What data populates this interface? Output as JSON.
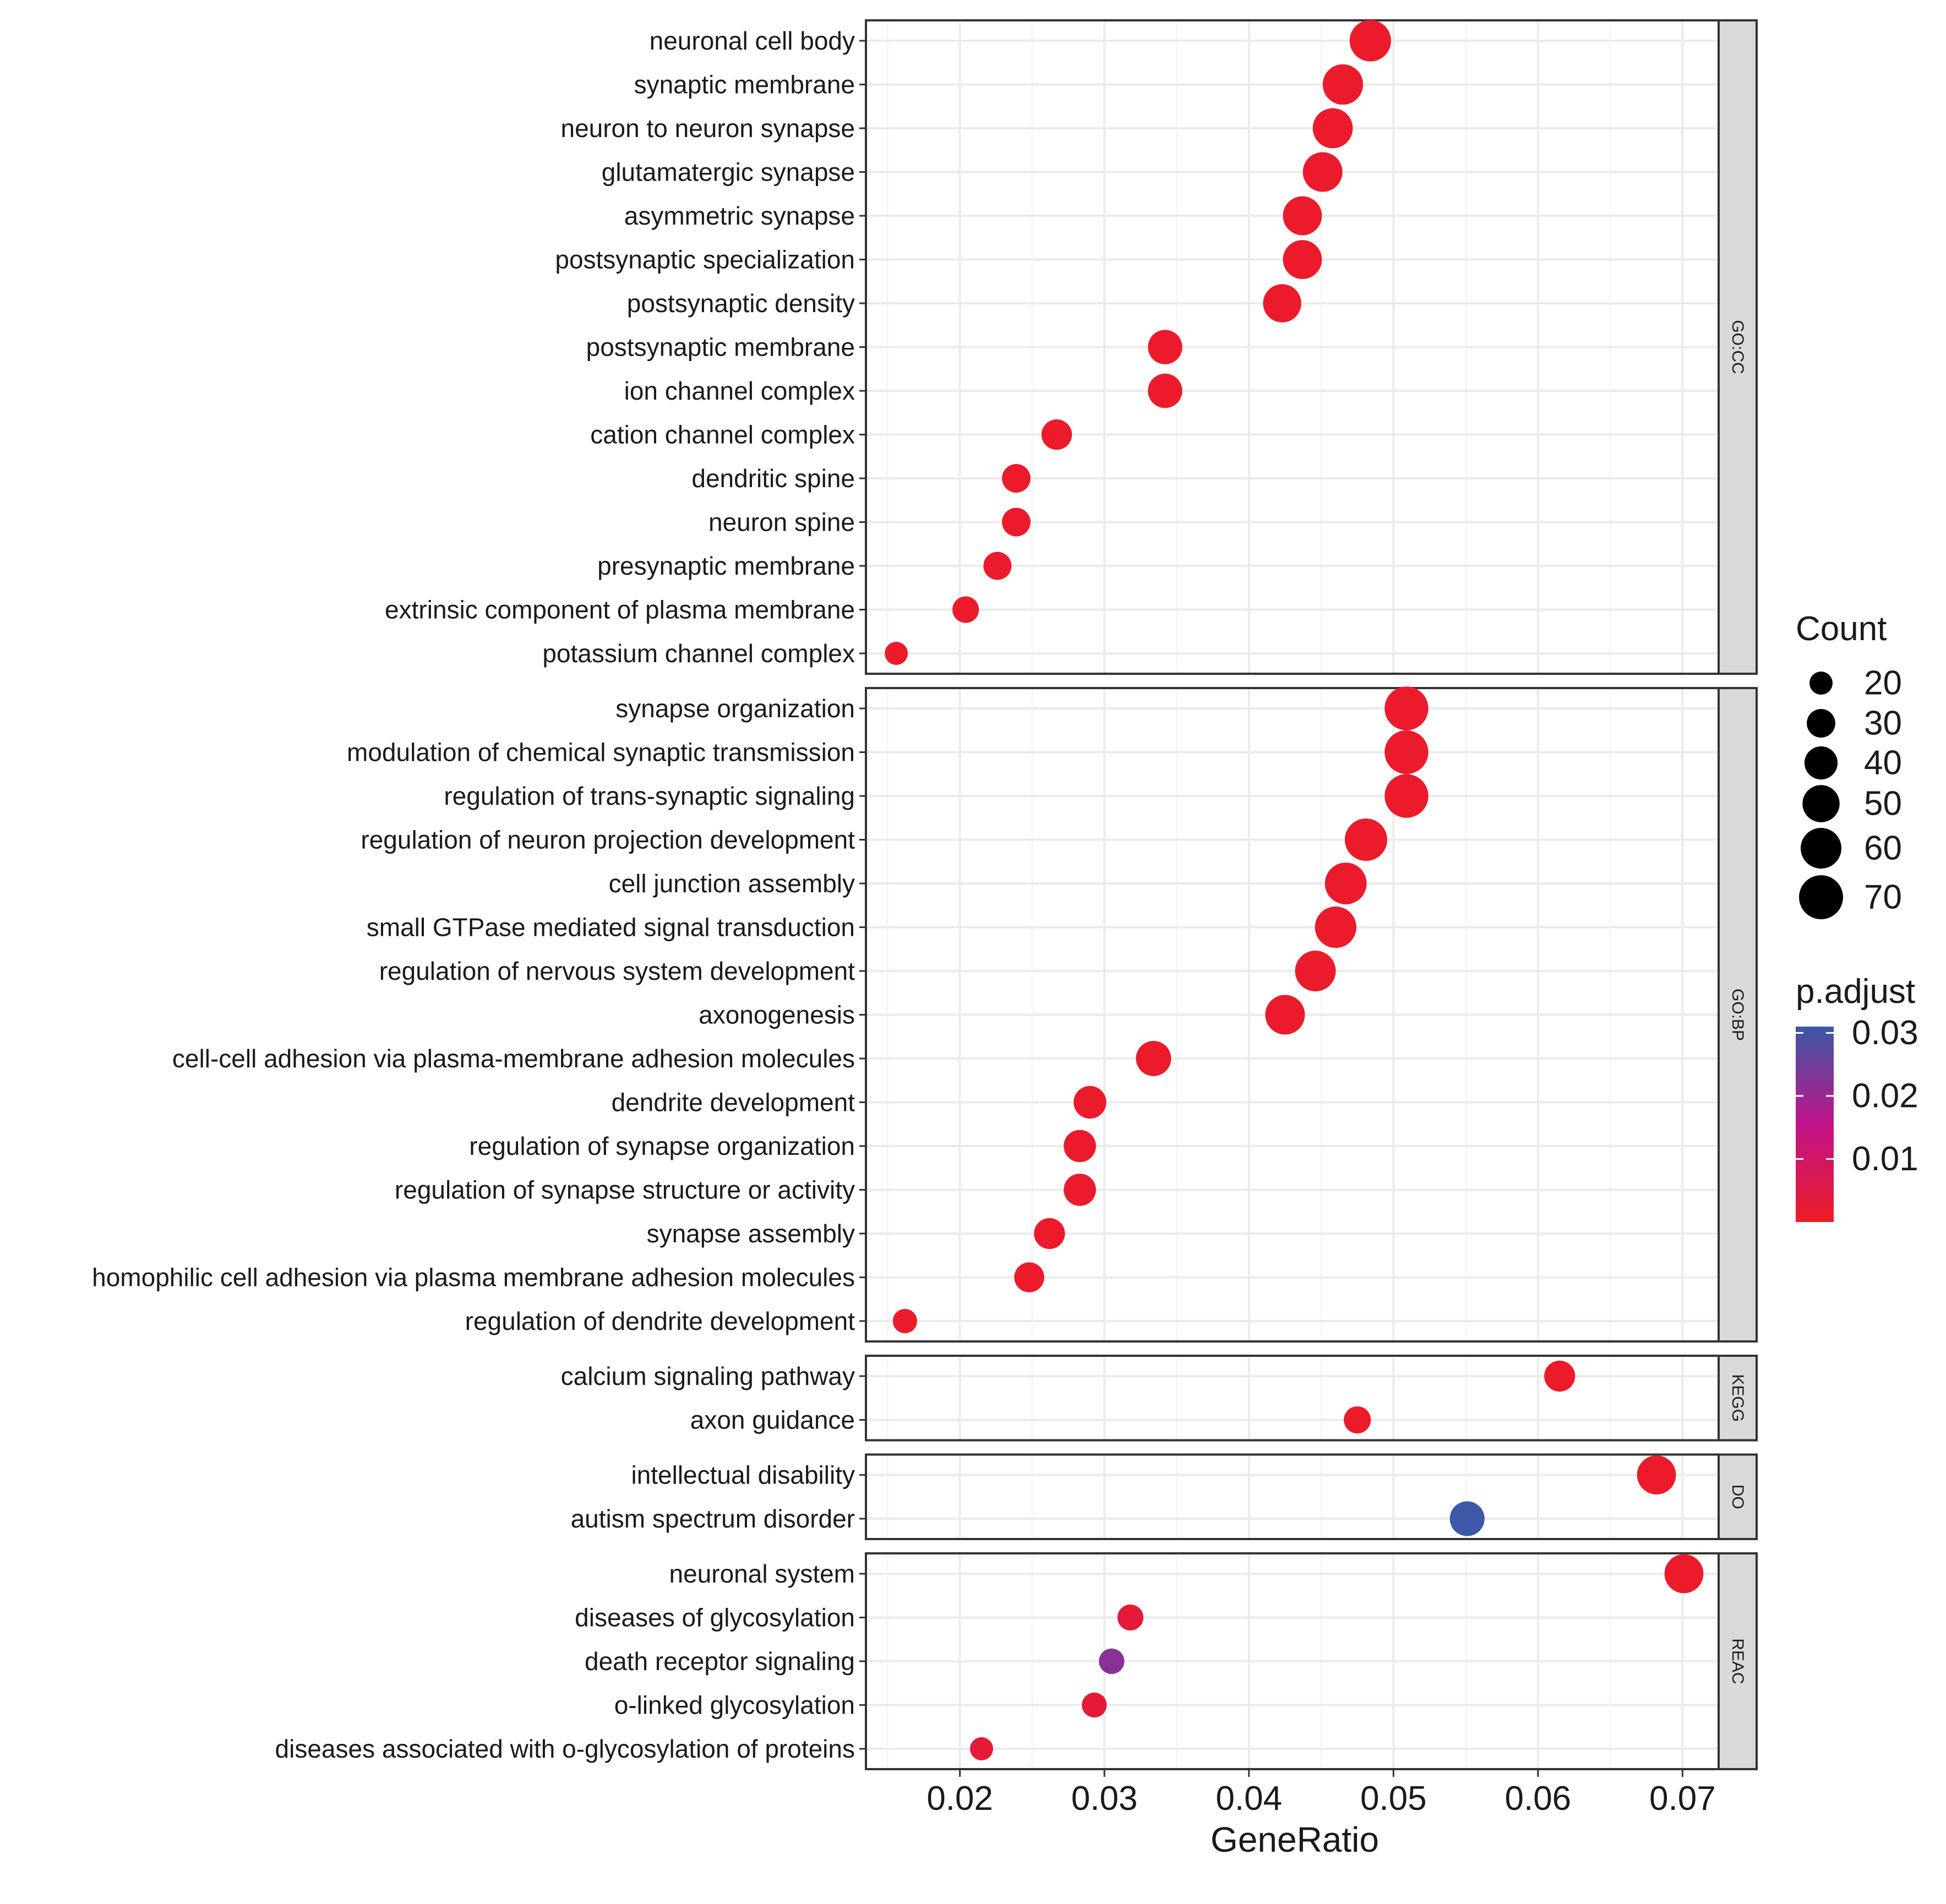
{
  "chart_data": {
    "type": "scatter",
    "xlabel": "GeneRatio",
    "xlim": [
      0.0135,
      0.0725
    ],
    "x_ticks": [
      "0.02",
      "0.03",
      "0.04",
      "0.05",
      "0.06",
      "0.07"
    ],
    "x_tick_values": [
      0.02,
      0.03,
      0.04,
      0.05,
      0.06,
      0.07
    ],
    "panels": [
      {
        "name": "GO:CC",
        "terms": [
          {
            "label": "neuronal cell body",
            "gene_ratio": 0.0484,
            "count": 62,
            "p_adjust": 0.001
          },
          {
            "label": "synaptic membrane",
            "gene_ratio": 0.0465,
            "count": 59,
            "p_adjust": 0.001
          },
          {
            "label": "neuron to neuron synapse",
            "gene_ratio": 0.0458,
            "count": 58,
            "p_adjust": 0.001
          },
          {
            "label": "glutamatergic synapse",
            "gene_ratio": 0.0451,
            "count": 57,
            "p_adjust": 0.001
          },
          {
            "label": "asymmetric synapse",
            "gene_ratio": 0.0437,
            "count": 55,
            "p_adjust": 0.001
          },
          {
            "label": "postsynaptic specialization",
            "gene_ratio": 0.0437,
            "count": 55,
            "p_adjust": 0.001
          },
          {
            "label": "postsynaptic density",
            "gene_ratio": 0.0423,
            "count": 53,
            "p_adjust": 0.001
          },
          {
            "label": "postsynaptic membrane",
            "gene_ratio": 0.0342,
            "count": 43,
            "p_adjust": 0.001
          },
          {
            "label": "ion channel complex",
            "gene_ratio": 0.0342,
            "count": 43,
            "p_adjust": 0.001
          },
          {
            "label": "cation channel complex",
            "gene_ratio": 0.0267,
            "count": 34,
            "p_adjust": 0.001
          },
          {
            "label": "dendritic spine",
            "gene_ratio": 0.0239,
            "count": 30,
            "p_adjust": 0.001
          },
          {
            "label": "neuron spine",
            "gene_ratio": 0.0239,
            "count": 30,
            "p_adjust": 0.001
          },
          {
            "label": "presynaptic membrane",
            "gene_ratio": 0.0226,
            "count": 29,
            "p_adjust": 0.001
          },
          {
            "label": "extrinsic component of plasma membrane",
            "gene_ratio": 0.0204,
            "count": 26,
            "p_adjust": 0.001
          },
          {
            "label": "potassium channel complex",
            "gene_ratio": 0.0156,
            "count": 20,
            "p_adjust": 0.001
          }
        ]
      },
      {
        "name": "GO:BP",
        "terms": [
          {
            "label": "synapse organization",
            "gene_ratio": 0.0509,
            "count": 69,
            "p_adjust": 0.001
          },
          {
            "label": "modulation of chemical synaptic transmission",
            "gene_ratio": 0.0509,
            "count": 69,
            "p_adjust": 0.001
          },
          {
            "label": "regulation of trans-synaptic signaling",
            "gene_ratio": 0.0509,
            "count": 69,
            "p_adjust": 0.001
          },
          {
            "label": "regulation of neuron projection development",
            "gene_ratio": 0.0481,
            "count": 65,
            "p_adjust": 0.001
          },
          {
            "label": "cell junction assembly",
            "gene_ratio": 0.0467,
            "count": 63,
            "p_adjust": 0.001
          },
          {
            "label": "small GTPase mediated signal transduction",
            "gene_ratio": 0.046,
            "count": 62,
            "p_adjust": 0.001
          },
          {
            "label": "regulation of nervous system development",
            "gene_ratio": 0.0446,
            "count": 60,
            "p_adjust": 0.001
          },
          {
            "label": "axonogenesis",
            "gene_ratio": 0.0425,
            "count": 57,
            "p_adjust": 0.001
          },
          {
            "label": "cell-cell adhesion via plasma-membrane adhesion molecules",
            "gene_ratio": 0.0334,
            "count": 45,
            "p_adjust": 0.001
          },
          {
            "label": "dendrite development",
            "gene_ratio": 0.029,
            "count": 39,
            "p_adjust": 0.001
          },
          {
            "label": "regulation of synapse organization",
            "gene_ratio": 0.0283,
            "count": 38,
            "p_adjust": 0.001
          },
          {
            "label": "regulation of synapse structure or activity",
            "gene_ratio": 0.0283,
            "count": 38,
            "p_adjust": 0.001
          },
          {
            "label": "synapse assembly",
            "gene_ratio": 0.0262,
            "count": 35,
            "p_adjust": 0.001
          },
          {
            "label": "homophilic cell adhesion via plasma membrane adhesion molecules",
            "gene_ratio": 0.0248,
            "count": 33,
            "p_adjust": 0.001
          },
          {
            "label": "regulation of dendrite development",
            "gene_ratio": 0.0162,
            "count": 22,
            "p_adjust": 0.001
          }
        ]
      },
      {
        "name": "KEGG",
        "terms": [
          {
            "label": "calcium signaling pathway",
            "gene_ratio": 0.0615,
            "count": 35,
            "p_adjust": 0.001
          },
          {
            "label": "axon guidance",
            "gene_ratio": 0.0475,
            "count": 27,
            "p_adjust": 0.001
          }
        ]
      },
      {
        "name": "DO",
        "terms": [
          {
            "label": "intellectual disability",
            "gene_ratio": 0.0682,
            "count": 55,
            "p_adjust": 0.001
          },
          {
            "label": "autism spectrum disorder",
            "gene_ratio": 0.0551,
            "count": 44,
            "p_adjust": 0.031
          }
        ]
      },
      {
        "name": "REAC",
        "terms": [
          {
            "label": "neuronal system",
            "gene_ratio": 0.0701,
            "count": 55,
            "p_adjust": 0.001
          },
          {
            "label": "diseases of glycosylation",
            "gene_ratio": 0.0318,
            "count": 25,
            "p_adjust": 0.003
          },
          {
            "label": "death receptor signaling",
            "gene_ratio": 0.0305,
            "count": 24,
            "p_adjust": 0.022
          },
          {
            "label": "o-linked glycosylation",
            "gene_ratio": 0.0293,
            "count": 23,
            "p_adjust": 0.003
          },
          {
            "label": "diseases associated with o-glycosylation of proteins",
            "gene_ratio": 0.0215,
            "count": 17,
            "p_adjust": 0.003
          }
        ]
      }
    ],
    "size_legend": {
      "title": "Count",
      "values": [
        20,
        30,
        40,
        50,
        60,
        70
      ],
      "labels": [
        "20",
        "30",
        "40",
        "50",
        "60",
        "70"
      ]
    },
    "color_legend": {
      "title": "p.adjust",
      "range": [
        0.0,
        0.031
      ],
      "ticks": [
        0.03,
        0.02,
        0.01
      ],
      "labels": [
        "0.03",
        "0.02",
        "0.01"
      ],
      "low_color": "#ee1c25",
      "mid_color": "#c0148a",
      "high_color": "#3c58a6"
    }
  }
}
